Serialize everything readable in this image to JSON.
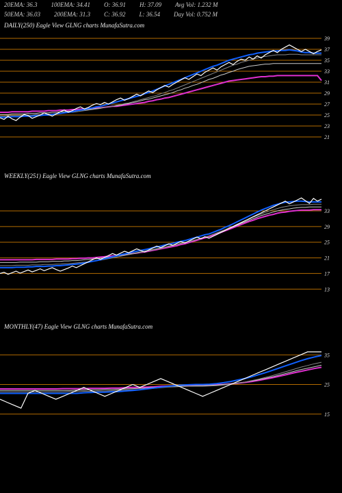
{
  "header": {
    "row1": [
      {
        "label": "20EMA:",
        "val": "36.3"
      },
      {
        "label": "100EMA:",
        "val": "34.41"
      },
      {
        "label": "O:",
        "val": "36.91"
      },
      {
        "label": "H:",
        "val": "37.09"
      },
      {
        "label": "Avg Vol:",
        "val": "1.232  M"
      }
    ],
    "row2": [
      {
        "label": "50EMA:",
        "val": "36.03"
      },
      {
        "label": "200EMA:",
        "val": "31.3"
      },
      {
        "label": "C:",
        "val": "36.92"
      },
      {
        "label": "L:",
        "val": "36.54"
      },
      {
        "label": "Day Vol:",
        "val": "0.752  M"
      }
    ]
  },
  "colors": {
    "bg": "#000000",
    "grid": "#c87800",
    "price": "#ffffff",
    "ema20": "#1060ff",
    "ema50": "#888888",
    "ema100": "#cccccc",
    "ema200": "#e030d0",
    "text": "#dddddd"
  },
  "panels": [
    {
      "id": "daily",
      "title": "DAILY(250) Eagle   View  GLNG charts MunafaSutra.com",
      "height": 160,
      "ylim": [
        20,
        40
      ],
      "ystep": 2,
      "ytick_start": 21,
      "price": [
        24.5,
        24.2,
        24.8,
        24.3,
        24.0,
        24.6,
        25.1,
        24.9,
        24.4,
        24.7,
        25.0,
        25.4,
        25.1,
        24.8,
        25.2,
        25.6,
        25.9,
        25.5,
        25.8,
        26.2,
        26.5,
        26.1,
        26.4,
        26.8,
        27.1,
        26.9,
        27.3,
        27.0,
        27.4,
        27.8,
        28.1,
        27.7,
        28.0,
        28.4,
        28.8,
        28.5,
        29.0,
        29.4,
        29.1,
        29.6,
        30.0,
        30.4,
        30.1,
        30.6,
        31.0,
        31.4,
        31.8,
        31.5,
        32.0,
        32.5,
        32.2,
        32.8,
        33.2,
        33.6,
        33.2,
        33.8,
        34.2,
        34.6,
        34.2,
        34.8,
        35.2,
        35.0,
        35.6,
        35.2,
        35.8,
        35.4,
        36.0,
        36.4,
        36.8,
        36.4,
        37.0,
        37.4,
        37.8,
        37.4,
        37.0,
        36.6,
        37.0,
        36.6,
        36.2,
        36.6,
        36.9
      ],
      "ema20": [
        24.6,
        24.6,
        24.6,
        24.7,
        24.7,
        24.7,
        24.8,
        24.8,
        24.8,
        24.9,
        24.9,
        25.0,
        25.0,
        25.1,
        25.2,
        25.3,
        25.4,
        25.5,
        25.6,
        25.8,
        25.9,
        26.0,
        26.2,
        26.3,
        26.5,
        26.6,
        26.8,
        27.0,
        27.2,
        27.4,
        27.6,
        27.8,
        28.0,
        28.2,
        28.4,
        28.6,
        28.9,
        29.1,
        29.4,
        29.7,
        30.0,
        30.3,
        30.6,
        30.9,
        31.2,
        31.5,
        31.8,
        32.1,
        32.4,
        32.7,
        33.0,
        33.3,
        33.6,
        33.9,
        34.1,
        34.4,
        34.7,
        35.0,
        35.2,
        35.4,
        35.6,
        35.8,
        36.0,
        36.1,
        36.3,
        36.4,
        36.5,
        36.6,
        36.7,
        36.7,
        36.8,
        36.8,
        36.9,
        36.8,
        36.7,
        36.5,
        36.4,
        36.4,
        36.3,
        36.3,
        36.3
      ],
      "ema50": [
        24.8,
        24.8,
        24.9,
        24.9,
        24.9,
        24.9,
        25.0,
        25.0,
        25.0,
        25.1,
        25.1,
        25.1,
        25.2,
        25.2,
        25.3,
        25.3,
        25.4,
        25.5,
        25.5,
        25.6,
        25.7,
        25.8,
        25.9,
        26.0,
        26.1,
        26.2,
        26.4,
        26.5,
        26.6,
        26.8,
        26.9,
        27.1,
        27.2,
        27.4,
        27.6,
        27.8,
        28.0,
        28.2,
        28.4,
        28.6,
        28.9,
        29.1,
        29.4,
        29.6,
        29.9,
        30.2,
        30.5,
        30.8,
        31.1,
        31.4,
        31.7,
        32.0,
        32.3,
        32.6,
        32.9,
        33.2,
        33.5,
        33.8,
        34.1,
        34.3,
        34.6,
        34.8,
        35.0,
        35.2,
        35.4,
        35.6,
        35.7,
        35.8,
        35.9,
        36.0,
        36.0,
        36.0,
        36.1,
        36.1,
        36.1,
        36.0,
        36.0,
        36.0,
        36.0,
        36.0,
        36.0
      ],
      "ema100": [
        25.1,
        25.1,
        25.1,
        25.2,
        25.2,
        25.2,
        25.2,
        25.3,
        25.3,
        25.3,
        25.4,
        25.4,
        25.4,
        25.5,
        25.5,
        25.6,
        25.6,
        25.7,
        25.7,
        25.8,
        25.9,
        25.9,
        26.0,
        26.1,
        26.2,
        26.3,
        26.4,
        26.5,
        26.6,
        26.7,
        26.8,
        27.0,
        27.1,
        27.3,
        27.4,
        27.6,
        27.8,
        27.9,
        28.1,
        28.3,
        28.5,
        28.7,
        28.9,
        29.1,
        29.4,
        29.6,
        29.9,
        30.1,
        30.4,
        30.6,
        30.9,
        31.2,
        31.5,
        31.7,
        32.0,
        32.3,
        32.5,
        32.8,
        33.0,
        33.3,
        33.5,
        33.7,
        33.9,
        34.0,
        34.1,
        34.2,
        34.3,
        34.3,
        34.4,
        34.4,
        34.4,
        34.4,
        34.4,
        34.4,
        34.4,
        34.4,
        34.4,
        34.4,
        34.4,
        34.4,
        34.4
      ],
      "ema200": [
        25.5,
        25.5,
        25.5,
        25.6,
        25.6,
        25.6,
        25.6,
        25.6,
        25.7,
        25.7,
        25.7,
        25.7,
        25.8,
        25.8,
        25.8,
        25.9,
        25.9,
        25.9,
        26.0,
        26.0,
        26.1,
        26.1,
        26.2,
        26.2,
        26.3,
        26.3,
        26.4,
        26.5,
        26.6,
        26.6,
        26.7,
        26.8,
        26.9,
        27.0,
        27.1,
        27.2,
        27.3,
        27.5,
        27.6,
        27.8,
        27.9,
        28.1,
        28.2,
        28.4,
        28.6,
        28.8,
        29.0,
        29.2,
        29.4,
        29.6,
        29.8,
        30.0,
        30.2,
        30.4,
        30.6,
        30.8,
        31.0,
        31.2,
        31.3,
        31.4,
        31.5,
        31.6,
        31.7,
        31.8,
        31.9,
        32.0,
        32.0,
        32.1,
        32.1,
        32.2,
        32.2,
        32.2,
        32.2,
        32.2,
        32.2,
        32.2,
        32.2,
        32.2,
        32.2,
        32.2,
        31.3
      ]
    },
    {
      "id": "weekly",
      "title": "WEEKLY(251) Eagle   View  GLNG charts MunafaSutra.com",
      "height": 160,
      "ylim": [
        12,
        40
      ],
      "ystep": 4,
      "ytick_start": 13,
      "yticks": [
        33,
        29,
        25,
        21,
        17,
        13
      ],
      "price": [
        17.0,
        17.3,
        16.8,
        17.2,
        17.6,
        17.1,
        17.5,
        17.9,
        17.4,
        17.8,
        18.2,
        17.7,
        18.1,
        18.5,
        18.0,
        17.6,
        18.0,
        18.4,
        18.9,
        18.5,
        19.0,
        19.5,
        20.0,
        20.5,
        21.0,
        20.6,
        21.1,
        21.6,
        22.1,
        21.7,
        22.2,
        22.7,
        22.3,
        22.8,
        23.3,
        22.9,
        22.5,
        23.0,
        23.5,
        24.0,
        23.6,
        24.1,
        24.6,
        24.2,
        24.7,
        25.2,
        24.8,
        25.3,
        25.8,
        26.3,
        25.9,
        26.4,
        26.0,
        26.5,
        27.0,
        27.5,
        28.0,
        28.5,
        29.0,
        29.5,
        30.0,
        30.5,
        31.0,
        31.5,
        32.0,
        32.5,
        33.0,
        33.5,
        34.0,
        34.5,
        35.0,
        35.5,
        34.8,
        35.3,
        35.8,
        36.3,
        35.6,
        34.9,
        36.2,
        35.5,
        36.0
      ],
      "ema20": [
        18.5,
        18.5,
        18.5,
        18.5,
        18.6,
        18.6,
        18.6,
        18.7,
        18.7,
        18.8,
        18.8,
        18.8,
        18.9,
        18.9,
        19.0,
        19.0,
        19.1,
        19.2,
        19.3,
        19.4,
        19.5,
        19.7,
        19.9,
        20.1,
        20.3,
        20.5,
        20.8,
        21.0,
        21.3,
        21.5,
        21.8,
        22.0,
        22.2,
        22.5,
        22.7,
        22.9,
        23.1,
        23.3,
        23.6,
        23.8,
        24.0,
        24.3,
        24.5,
        24.7,
        25.0,
        25.2,
        25.4,
        25.7,
        26.0,
        26.3,
        26.6,
        26.9,
        27.1,
        27.5,
        27.9,
        28.3,
        28.8,
        29.2,
        29.7,
        30.2,
        30.7,
        31.2,
        31.7,
        32.2,
        32.7,
        33.2,
        33.6,
        34.0,
        34.4,
        34.7,
        35.0,
        35.2,
        35.3,
        35.4,
        35.5,
        35.5,
        35.4,
        35.3,
        35.3,
        35.3,
        35.3
      ],
      "ema50": [
        19.0,
        19.0,
        19.0,
        19.0,
        19.1,
        19.1,
        19.1,
        19.1,
        19.2,
        19.2,
        19.2,
        19.3,
        19.3,
        19.3,
        19.4,
        19.4,
        19.5,
        19.5,
        19.6,
        19.7,
        19.8,
        19.9,
        20.0,
        20.1,
        20.3,
        20.4,
        20.6,
        20.8,
        21.0,
        21.2,
        21.4,
        21.6,
        21.8,
        22.0,
        22.2,
        22.4,
        22.6,
        22.8,
        23.0,
        23.2,
        23.4,
        23.7,
        23.9,
        24.1,
        24.4,
        24.6,
        24.9,
        25.1,
        25.4,
        25.7,
        26.0,
        26.3,
        26.6,
        27.0,
        27.4,
        27.8,
        28.2,
        28.7,
        29.1,
        29.6,
        30.0,
        30.5,
        30.9,
        31.4,
        31.8,
        32.2,
        32.6,
        33.0,
        33.3,
        33.6,
        33.9,
        34.1,
        34.3,
        34.4,
        34.5,
        34.6,
        34.6,
        34.6,
        34.7,
        34.7,
        34.7
      ],
      "ema100": [
        19.8,
        19.8,
        19.8,
        19.8,
        19.8,
        19.9,
        19.9,
        19.9,
        19.9,
        19.9,
        20.0,
        20.0,
        20.0,
        20.1,
        20.1,
        20.1,
        20.2,
        20.2,
        20.3,
        20.3,
        20.4,
        20.5,
        20.6,
        20.7,
        20.8,
        20.9,
        21.0,
        21.2,
        21.3,
        21.5,
        21.6,
        21.8,
        22.0,
        22.1,
        22.3,
        22.5,
        22.7,
        22.9,
        23.1,
        23.3,
        23.5,
        23.7,
        24.0,
        24.2,
        24.4,
        24.7,
        24.9,
        25.2,
        25.4,
        25.7,
        26.0,
        26.3,
        26.6,
        27.0,
        27.3,
        27.7,
        28.1,
        28.5,
        28.9,
        29.3,
        29.8,
        30.2,
        30.6,
        31.0,
        31.4,
        31.8,
        32.1,
        32.4,
        32.7,
        33.0,
        33.2,
        33.4,
        33.5,
        33.7,
        33.8,
        33.9,
        33.9,
        34.0,
        34.0,
        34.0,
        34.0
      ],
      "ema200": [
        20.5,
        20.5,
        20.5,
        20.5,
        20.5,
        20.5,
        20.5,
        20.5,
        20.5,
        20.6,
        20.6,
        20.6,
        20.6,
        20.6,
        20.7,
        20.7,
        20.7,
        20.7,
        20.8,
        20.8,
        20.9,
        20.9,
        21.0,
        21.0,
        21.1,
        21.2,
        21.3,
        21.4,
        21.5,
        21.6,
        21.7,
        21.8,
        21.9,
        22.1,
        22.2,
        22.4,
        22.5,
        22.7,
        22.9,
        23.1,
        23.3,
        23.5,
        23.7,
        23.9,
        24.1,
        24.4,
        24.6,
        24.9,
        25.2,
        25.5,
        25.8,
        26.1,
        26.4,
        26.8,
        27.1,
        27.5,
        27.9,
        28.3,
        28.7,
        29.1,
        29.5,
        29.9,
        30.3,
        30.6,
        31.0,
        31.3,
        31.6,
        31.9,
        32.1,
        32.4,
        32.6,
        32.7,
        32.9,
        33.0,
        33.1,
        33.2,
        33.2,
        33.2,
        33.3,
        33.3,
        33.3
      ]
    },
    {
      "id": "monthly",
      "title": "MONTHLY(47) Eagle   View  GLNG charts MunafaSutra.com",
      "height": 160,
      "ylim": [
        5,
        42
      ],
      "ystep": 10,
      "yticks": [
        35,
        25,
        15
      ],
      "price": [
        20,
        19,
        18,
        17,
        22,
        23,
        22,
        21,
        20,
        21,
        22,
        23,
        24,
        23,
        22,
        21,
        22,
        23,
        24,
        25,
        24,
        25,
        26,
        27,
        26,
        25,
        24,
        23,
        22,
        21,
        22,
        23,
        24,
        25,
        26,
        27,
        28,
        29,
        30,
        31,
        32,
        33,
        34,
        35,
        36,
        36,
        36
      ],
      "ema20": [
        22,
        22,
        22,
        22,
        22,
        22,
        22,
        22,
        22,
        22,
        22,
        22,
        22.2,
        22.3,
        22.4,
        22.4,
        22.5,
        22.6,
        22.8,
        23,
        23.2,
        23.5,
        23.8,
        24.1,
        24.4,
        24.6,
        24.8,
        24.9,
        25,
        25,
        25.1,
        25.3,
        25.6,
        26,
        26.5,
        27,
        27.6,
        28.3,
        29,
        29.8,
        30.6,
        31.4,
        32.2,
        33,
        33.7,
        34.3,
        34.8
      ],
      "ema50": [
        22.5,
        22.5,
        22.5,
        22.5,
        22.5,
        22.5,
        22.5,
        22.5,
        22.5,
        22.5,
        22.6,
        22.6,
        22.7,
        22.7,
        22.8,
        22.8,
        22.9,
        23,
        23.1,
        23.2,
        23.3,
        23.5,
        23.7,
        23.9,
        24.1,
        24.2,
        24.3,
        24.4,
        24.4,
        24.4,
        24.5,
        24.6,
        24.8,
        25.1,
        25.4,
        25.8,
        26.3,
        26.8,
        27.4,
        28,
        28.7,
        29.4,
        30.1,
        30.8,
        31.4,
        32,
        32.5
      ],
      "ema100": [
        23,
        23,
        23,
        23,
        23,
        23,
        23,
        23,
        23,
        23,
        23,
        23.1,
        23.1,
        23.2,
        23.2,
        23.3,
        23.3,
        23.4,
        23.5,
        23.6,
        23.7,
        23.8,
        24,
        24.1,
        24.3,
        24.4,
        24.5,
        24.5,
        24.6,
        24.6,
        24.7,
        24.8,
        25,
        25.2,
        25.5,
        25.8,
        26.2,
        26.6,
        27.1,
        27.6,
        28.2,
        28.8,
        29.4,
        30,
        30.5,
        31,
        31.5
      ],
      "ema200": [
        23.5,
        23.5,
        23.5,
        23.5,
        23.5,
        23.5,
        23.5,
        23.5,
        23.5,
        23.6,
        23.6,
        23.6,
        23.6,
        23.7,
        23.7,
        23.7,
        23.8,
        23.8,
        23.9,
        24,
        24,
        24.1,
        24.2,
        24.4,
        24.5,
        24.6,
        24.7,
        24.7,
        24.8,
        24.8,
        24.8,
        24.9,
        25,
        25.2,
        25.4,
        25.7,
        26,
        26.4,
        26.8,
        27.3,
        27.8,
        28.3,
        28.9,
        29.4,
        29.9,
        30.4,
        30.8
      ]
    }
  ]
}
